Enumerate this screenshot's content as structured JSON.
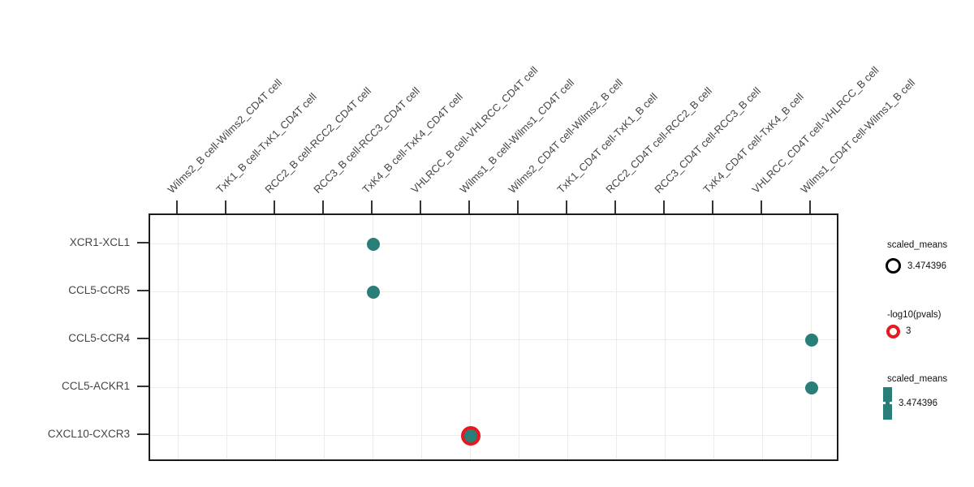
{
  "chart_data": {
    "type": "scatter",
    "title": "",
    "x_categories": [
      "Wilms2_B cell-Wilms2_CD4T cell",
      "TxK1_B cell-TxK1_CD4T cell",
      "RCC2_B cell-RCC2_CD4T cell",
      "RCC3_B cell-RCC3_CD4T cell",
      "TxK4_B cell-TxK4_CD4T cell",
      "VHLRCC_B cell-VHLRCC_CD4T cell",
      "Wilms1_B cell-Wilms1_CD4T cell",
      "Wilms2_CD4T cell-Wilms2_B cell",
      "TxK1_CD4T cell-TxK1_B cell",
      "RCC2_CD4T cell-RCC2_B cell",
      "RCC3_CD4T cell-RCC3_B cell",
      "TxK4_CD4T cell-TxK4_B cell",
      "VHLRCC_CD4T cell-VHLRCC_B cell",
      "Wilms1_CD4T cell-Wilms1_B cell"
    ],
    "y_categories": [
      "XCR1-XCL1",
      "CCL5-CCR5",
      "CCL5-CCR4",
      "CCL5-ACKR1",
      "CXCL10-CXCR3"
    ],
    "points": [
      {
        "x": "TxK4_B cell-TxK4_CD4T cell",
        "y": "XCR1-XCL1",
        "scaled_mean": 3.474396,
        "highlighted": false
      },
      {
        "x": "TxK4_B cell-TxK4_CD4T cell",
        "y": "CCL5-CCR5",
        "scaled_mean": 3.474396,
        "highlighted": false
      },
      {
        "x": "Wilms1_CD4T cell-Wilms1_B cell",
        "y": "CCL5-CCR4",
        "scaled_mean": 3.474396,
        "highlighted": false
      },
      {
        "x": "Wilms1_CD4T cell-Wilms1_B cell",
        "y": "CCL5-ACKR1",
        "scaled_mean": 3.474396,
        "highlighted": false
      },
      {
        "x": "Wilms1_B cell-Wilms1_CD4T cell",
        "y": "CXCL10-CXCR3",
        "scaled_mean": 3.474396,
        "neg_log10_pval": 3,
        "highlighted": true
      }
    ],
    "grid": true,
    "legend_position": "right",
    "legends": [
      {
        "title": "scaled_means",
        "value": "3.474396",
        "symbol": "black-open-circle"
      },
      {
        "title": "-log10(pvals)",
        "value": "3",
        "symbol": "red-open-circle"
      },
      {
        "title": "scaled_means",
        "value": "3.474396",
        "symbol": "teal-colorbar"
      }
    ],
    "colors": {
      "dot_fill": "#2a7e78",
      "highlight_ring": "#e8191e",
      "size_legend_ring": "#000000",
      "grid": "#ececec",
      "axis_text": "#444444",
      "panel_border": "#1a1a1a"
    }
  }
}
